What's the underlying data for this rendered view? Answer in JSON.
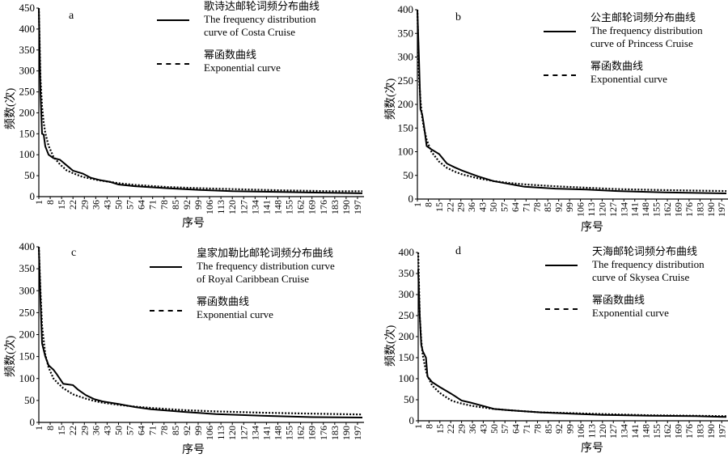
{
  "chart_data": [
    {
      "type": "line",
      "panel_label": "a",
      "xlabel": "序号",
      "ylabel": "频数(次)",
      "ylim": [
        0,
        450
      ],
      "xlim": [
        1,
        200
      ],
      "yticks": [
        0,
        50,
        100,
        150,
        200,
        250,
        300,
        350,
        400,
        450
      ],
      "xticks": [
        1,
        8,
        15,
        22,
        29,
        36,
        43,
        50,
        57,
        64,
        71,
        78,
        85,
        92,
        99,
        106,
        113,
        120,
        127,
        134,
        141,
        148,
        155,
        162,
        169,
        176,
        183,
        190,
        197
      ],
      "legend": {
        "placement": "top-right",
        "entries": [
          {
            "lines": [
              "歌诗达邮轮词频分布曲线",
              "The frequency distribution",
              "curve of Costa Cruise"
            ],
            "style": "solid"
          },
          {
            "lines": [
              "幂函数曲线",
              "Exponential curve"
            ],
            "style": "dotted"
          }
        ]
      },
      "series": [
        {
          "style": "solid",
          "x": [
            1,
            2,
            3,
            4,
            5,
            7,
            10,
            14,
            18,
            22,
            28,
            33,
            38,
            45,
            50,
            60,
            80,
            100,
            120,
            150,
            180,
            200
          ],
          "y": [
            450,
            250,
            150,
            148,
            120,
            100,
            92,
            88,
            75,
            62,
            55,
            45,
            40,
            35,
            29,
            25,
            20,
            16,
            13,
            11,
            9,
            8
          ]
        },
        {
          "style": "dotted",
          "x": [
            1,
            2,
            3,
            4,
            5,
            7,
            10,
            14,
            18,
            22,
            28,
            33,
            38,
            45,
            50,
            60,
            80,
            100,
            120,
            150,
            180,
            200
          ],
          "y": [
            450,
            282,
            215,
            177,
            152,
            121,
            95,
            77,
            63,
            56,
            47,
            43,
            39,
            35,
            32,
            28,
            23,
            20,
            18,
            15,
            13,
            13
          ]
        }
      ]
    },
    {
      "type": "line",
      "panel_label": "b",
      "xlabel": "序号",
      "ylabel": "频数(次)",
      "ylim": [
        0,
        400
      ],
      "xlim": [
        1,
        200
      ],
      "yticks": [
        0,
        50,
        100,
        150,
        200,
        250,
        300,
        350,
        400
      ],
      "xticks": [
        1,
        8,
        15,
        22,
        29,
        36,
        43,
        50,
        57,
        64,
        71,
        78,
        85,
        92,
        99,
        106,
        113,
        120,
        127,
        134,
        141,
        148,
        155,
        162,
        169,
        176,
        183,
        190,
        197
      ],
      "legend": {
        "placement": "top-right",
        "entries": [
          {
            "lines": [
              "公主邮轮词频分布曲线",
              "The frequency distribution",
              "curve of  Princess Cruise"
            ],
            "style": "solid"
          },
          {
            "lines": [
              "幂函数曲线",
              "Exponential curve"
            ],
            "style": "dotted"
          }
        ]
      },
      "series": [
        {
          "style": "solid",
          "x": [
            1,
            2,
            3,
            4,
            5,
            7,
            10,
            15,
            20,
            25,
            30,
            40,
            50,
            60,
            70,
            90,
            110,
            130,
            160,
            200
          ],
          "y": [
            400,
            300,
            190,
            180,
            160,
            112,
            105,
            95,
            75,
            67,
            60,
            48,
            38,
            32,
            26,
            22,
            20,
            17,
            14,
            12
          ]
        },
        {
          "style": "dotted",
          "x": [
            1,
            2,
            3,
            4,
            5,
            7,
            10,
            15,
            20,
            25,
            30,
            40,
            50,
            60,
            70,
            90,
            110,
            130,
            160,
            200
          ],
          "y": [
            400,
            264,
            208,
            175,
            153,
            125,
            100,
            79,
            66,
            58,
            52,
            44,
            38,
            34,
            31,
            27,
            24,
            21,
            19,
            17
          ]
        }
      ]
    },
    {
      "type": "line",
      "panel_label": "c",
      "xlabel": "序号",
      "ylabel": "频数(次)",
      "ylim": [
        0,
        400
      ],
      "xlim": [
        1,
        200
      ],
      "yticks": [
        0,
        50,
        100,
        150,
        200,
        250,
        300,
        350,
        400
      ],
      "xticks": [
        1,
        8,
        15,
        22,
        29,
        36,
        43,
        50,
        57,
        64,
        71,
        78,
        85,
        92,
        99,
        106,
        113,
        120,
        127,
        134,
        141,
        148,
        155,
        162,
        169,
        176,
        183,
        190,
        197
      ],
      "legend": {
        "placement": "top-right",
        "entries": [
          {
            "lines": [
              "皇家加勒比邮轮词频分布曲线",
              "The frequency distribution curve",
              "of Royal Caribbean Cruise"
            ],
            "style": "solid"
          },
          {
            "lines": [
              "幂函数曲线",
              "Exponential curve"
            ],
            "style": "dotted"
          }
        ]
      },
      "series": [
        {
          "style": "solid",
          "x": [
            1,
            2,
            3,
            5,
            7,
            10,
            12,
            16,
            22,
            25,
            30,
            35,
            40,
            50,
            60,
            70,
            90,
            110,
            140,
            170,
            200
          ],
          "y": [
            400,
            280,
            180,
            150,
            130,
            120,
            110,
            88,
            85,
            75,
            62,
            53,
            48,
            42,
            35,
            30,
            24,
            19,
            15,
            12,
            11
          ]
        },
        {
          "style": "dotted",
          "x": [
            1,
            2,
            3,
            5,
            7,
            10,
            12,
            16,
            22,
            25,
            30,
            35,
            40,
            50,
            60,
            70,
            90,
            110,
            140,
            170,
            200
          ],
          "y": [
            400,
            300,
            220,
            155,
            125,
            100,
            92,
            78,
            64,
            60,
            54,
            49,
            45,
            40,
            36,
            33,
            28,
            25,
            22,
            20,
            18
          ]
        }
      ]
    },
    {
      "type": "line",
      "panel_label": "d",
      "xlabel": "序号",
      "ylabel": "频数(次)",
      "ylim": [
        0,
        400
      ],
      "xlim": [
        1,
        200
      ],
      "yticks": [
        0,
        50,
        100,
        150,
        200,
        250,
        300,
        350,
        400
      ],
      "xticks": [
        1,
        8,
        15,
        22,
        29,
        36,
        43,
        50,
        57,
        64,
        71,
        78,
        85,
        92,
        99,
        106,
        113,
        120,
        127,
        134,
        141,
        148,
        155,
        162,
        169,
        176,
        183,
        190,
        197
      ],
      "legend": {
        "placement": "top-right",
        "entries": [
          {
            "lines": [
              "天海邮轮词频分布曲线",
              "The frequency distribution",
              "curve of Skysea Cruise"
            ],
            "style": "solid"
          },
          {
            "lines": [
              "幂函数曲线",
              "Exponential curve"
            ],
            "style": "dotted"
          }
        ]
      },
      "series": [
        {
          "style": "solid",
          "x": [
            1,
            2,
            3,
            4,
            6,
            7,
            10,
            15,
            22,
            25,
            29,
            35,
            40,
            50,
            60,
            80,
            100,
            120,
            150,
            180,
            200
          ],
          "y": [
            360,
            250,
            180,
            165,
            150,
            105,
            92,
            80,
            65,
            58,
            48,
            43,
            38,
            28,
            25,
            20,
            17,
            14,
            12,
            11,
            9
          ]
        },
        {
          "style": "dotted",
          "x": [
            1,
            2,
            3,
            4,
            6,
            7,
            10,
            15,
            22,
            25,
            29,
            35,
            40,
            50,
            60,
            80,
            100,
            120,
            150,
            180,
            200
          ],
          "y": [
            400,
            250,
            190,
            156,
            118,
            107,
            84,
            66,
            49,
            45,
            41,
            36,
            33,
            28,
            25,
            20,
            18,
            16,
            13,
            12,
            11
          ]
        }
      ]
    }
  ]
}
